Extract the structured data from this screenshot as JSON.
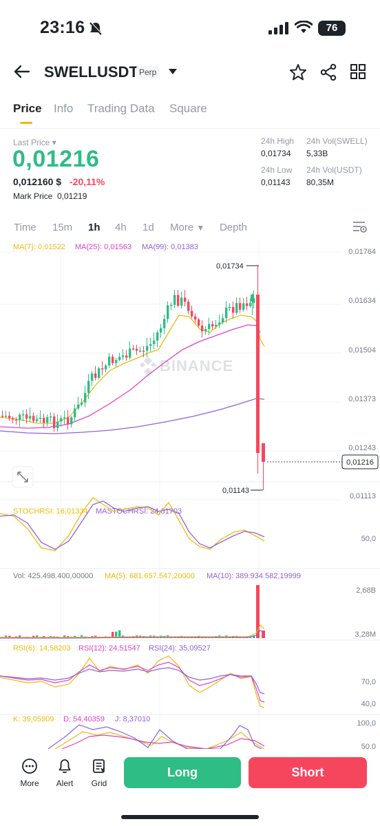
{
  "status_bar": {
    "time": "23:16",
    "battery": "76"
  },
  "header": {
    "symbol": "SWELLUSDT",
    "badge": "Perp"
  },
  "tabs": [
    "Price",
    "Info",
    "Trading Data",
    "Square"
  ],
  "price": {
    "last_price_label": "Last Price",
    "last_price": "0,01216",
    "usd_price": "0,012160 $",
    "change_pct": "-20,11%",
    "mark_price_label": "Mark Price",
    "mark_price": "0,01219"
  },
  "stats": {
    "high_label": "24h High",
    "high": "0,01734",
    "vol_swell_label": "24h Vol(SWELL)",
    "vol_swell": "5,33B",
    "low_label": "24h Low",
    "low": "0,01143",
    "vol_usdt_label": "24h Vol(USDT)",
    "vol_usdt": "80,35M"
  },
  "timeframes": [
    "Time",
    "15m",
    "1h",
    "4h",
    "1d",
    "More",
    "Depth"
  ],
  "active_timeframe": "1h",
  "indicators": {
    "ma7": "MA(7): 0,01522",
    "ma25": "MA(25): 0,01563",
    "ma99": "MA(99): 0,01383",
    "stoch": "STOCHRSI: 16,01334",
    "mastoch": "MASTOCHRSI: 24,31703",
    "vol": "Vol: 425.498.400,00000",
    "vol_ma5": "MA(5): 681.657.547,20000",
    "vol_ma10": "MA(10): 389.934.582,19999",
    "rsi6": "RSI(6): 14,58203",
    "rsi12": "RSI(12): 24,51547",
    "rsi24": "RSI(24): 35,09527",
    "k": "K: 39,05909",
    "d": "D: 54,40359",
    "j": "J: 8,37010"
  },
  "chart_data": {
    "type": "candlestick",
    "price_axis": [
      "0,01764",
      "0,01634",
      "0,01504",
      "0,01373",
      "0,01243",
      "0,01113"
    ],
    "high_annotation": "0,01734",
    "low_annotation": "0,01143",
    "current_price_tag": "0,01216",
    "watermark": "BINANCE",
    "stoch_axis": "50,0",
    "volume_axis": [
      "2,68B",
      "3,28M"
    ],
    "rsi_axis": [
      "70,0",
      "40,0"
    ],
    "kdj_axis": [
      "100,0",
      "50,0"
    ],
    "ylim": [
      0.01113,
      0.01764
    ]
  },
  "bottom_bar": {
    "more": "More",
    "alert": "Alert",
    "grid": "Grid",
    "long": "Long",
    "short": "Short"
  },
  "colors": {
    "up": "#2ebd85",
    "down": "#f6465d",
    "accent": "#f0b90b",
    "ma7": "#f0b90b",
    "ma25": "#e040c8",
    "ma99": "#8e62d9"
  }
}
